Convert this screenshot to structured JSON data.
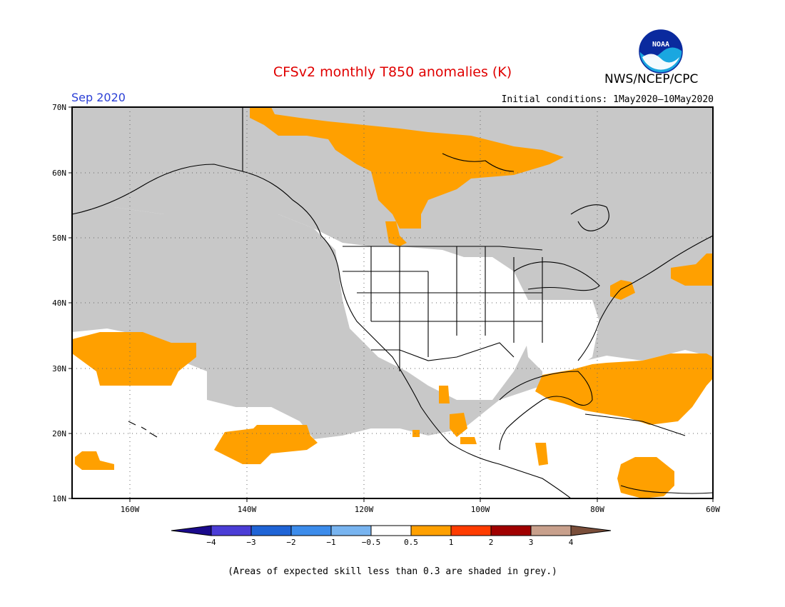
{
  "header": {
    "title": "CFSv2 monthly T850 anomalies (K)",
    "agency": "NWS/NCEP/CPC",
    "logo_text": "NOAA",
    "month": "Sep 2020",
    "initial_conditions": "Initial conditions: 1May2020—10May2020"
  },
  "map": {
    "lat_labels": [
      "70N",
      "60N",
      "50N",
      "40N",
      "30N",
      "20N",
      "10N"
    ],
    "lon_labels": [
      "160W",
      "140W",
      "120W",
      "100W",
      "80W",
      "60W"
    ],
    "background_color": "#ffffff",
    "low_skill_color": "#c8c8c8",
    "anomaly_color": "#ffa000"
  },
  "legend": {
    "labels": [
      "−4",
      "−3",
      "−2",
      "−1",
      "−0.5",
      "0.5",
      "1",
      "2",
      "3",
      "4"
    ],
    "colors": [
      "#1a0a8c",
      "#4b3dd6",
      "#1f64d6",
      "#3c8ceb",
      "#78b4f0",
      "#ffffff",
      "#ffa000",
      "#ff3c00",
      "#a00000",
      "#c8a08c",
      "#7a4e3a"
    ]
  },
  "footnote": "(Areas of expected skill less than 0.3 are shaded in grey.)"
}
